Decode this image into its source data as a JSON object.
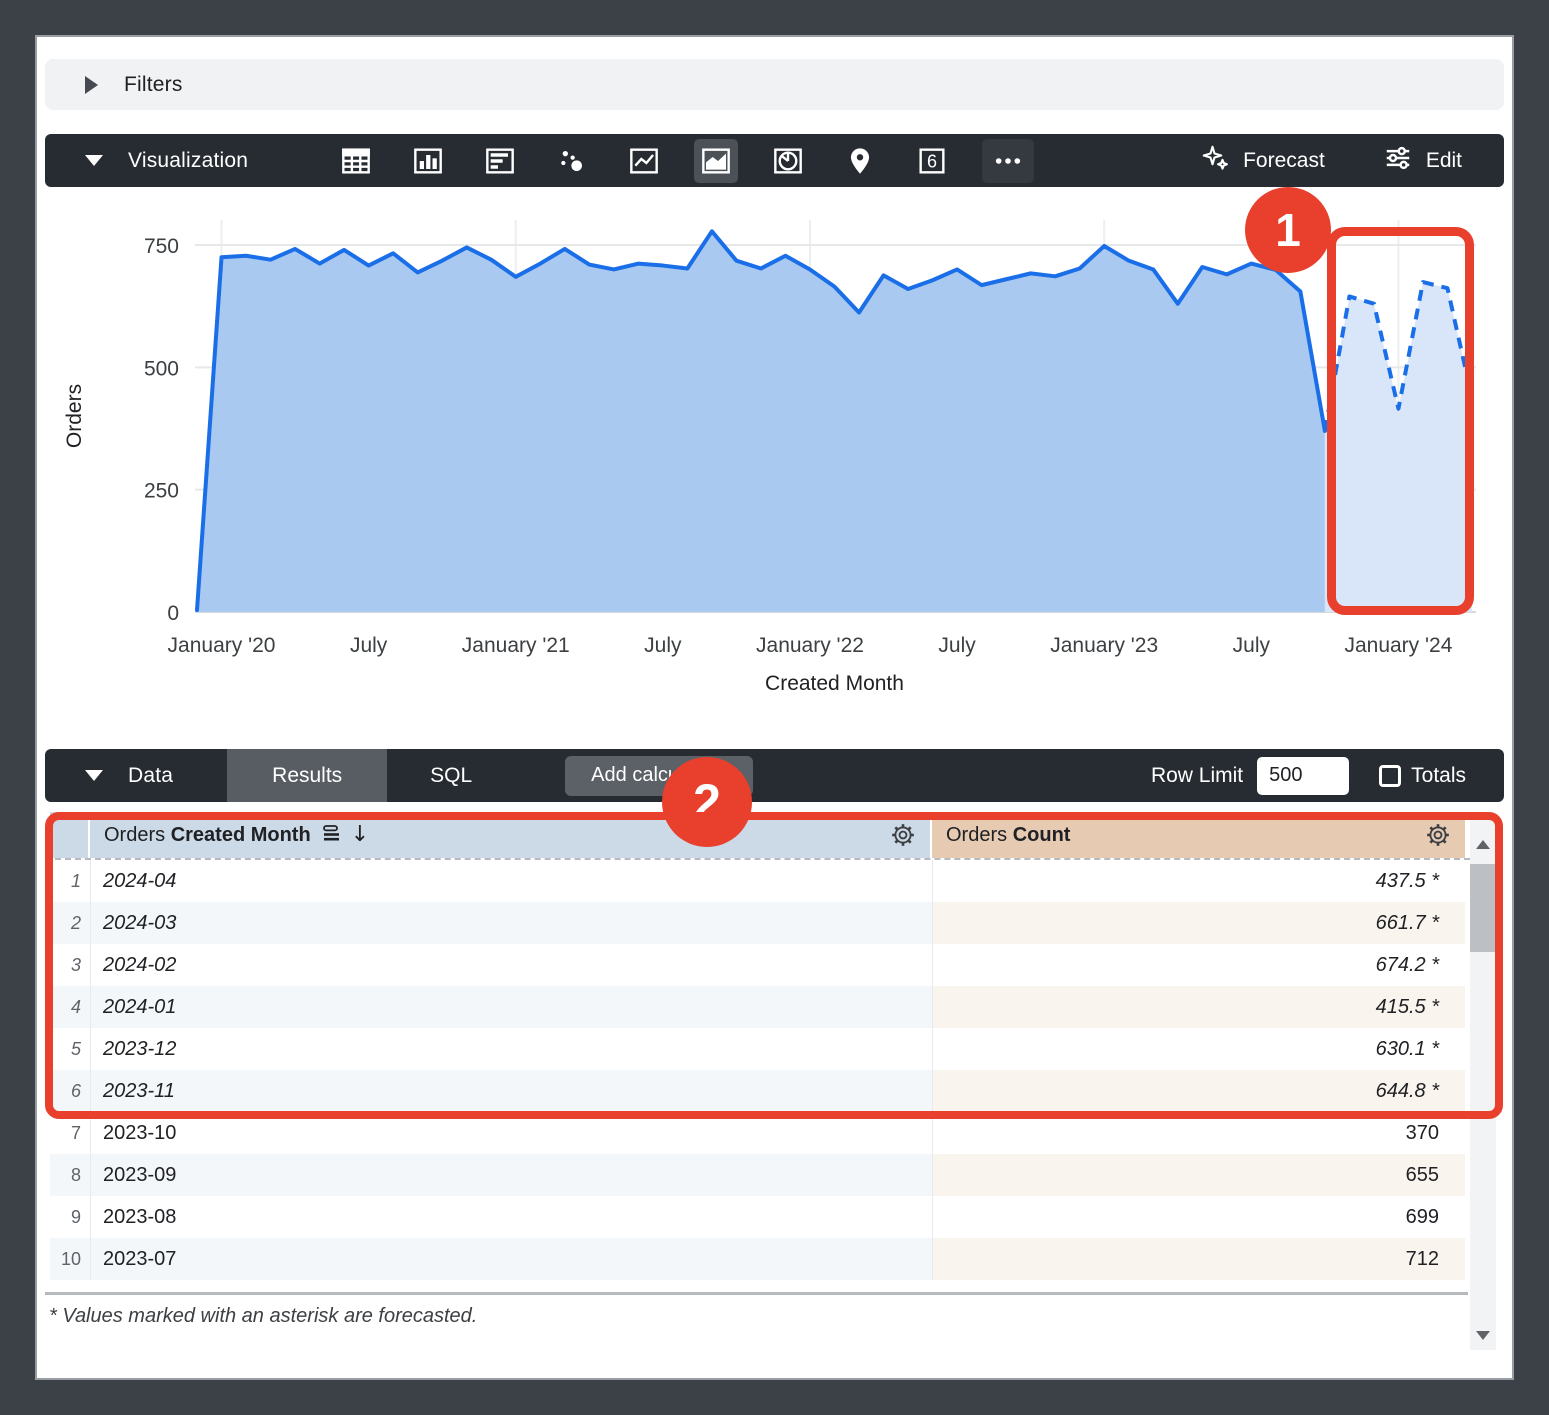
{
  "colors": {
    "accent_blue": "#1a6fe8",
    "history_fill": "#a9c9f1",
    "forecast_fill": "#d9e6fa",
    "highlight_red": "#e8402d",
    "dimension_header_bg": "#ccd9e7",
    "measure_header_bg": "#e7cab2"
  },
  "filters": {
    "label": "Filters"
  },
  "viz_bar": {
    "label": "Visualization",
    "chart_type_icons": [
      "table",
      "column",
      "bar",
      "scatter",
      "line",
      "area",
      "pie",
      "map",
      "single-value",
      "more"
    ],
    "selected_icon": "area",
    "single_value_icon_text": "6",
    "forecast_label": "Forecast",
    "edit_label": "Edit"
  },
  "annotations": {
    "badge_1": "1",
    "badge_2": "2"
  },
  "chart_data": {
    "type": "area",
    "title": "",
    "xlabel": "Created Month",
    "ylabel": "Orders",
    "ylim": [
      0,
      800
    ],
    "yticks": [
      0,
      250,
      500,
      750
    ],
    "grid": true,
    "legend": "none",
    "x": [
      "2019-12",
      "2020-01",
      "2020-02",
      "2020-03",
      "2020-04",
      "2020-05",
      "2020-06",
      "2020-07",
      "2020-08",
      "2020-09",
      "2020-10",
      "2020-11",
      "2020-12",
      "2021-01",
      "2021-02",
      "2021-03",
      "2021-04",
      "2021-05",
      "2021-06",
      "2021-07",
      "2021-08",
      "2021-09",
      "2021-10",
      "2021-11",
      "2021-12",
      "2022-01",
      "2022-02",
      "2022-03",
      "2022-04",
      "2022-05",
      "2022-06",
      "2022-07",
      "2022-08",
      "2022-09",
      "2022-10",
      "2022-11",
      "2022-12",
      "2023-01",
      "2023-02",
      "2023-03",
      "2023-04",
      "2023-05",
      "2023-06",
      "2023-07",
      "2023-08",
      "2023-09",
      "2023-10",
      "2023-11",
      "2023-12",
      "2024-01",
      "2024-02",
      "2024-03",
      "2024-04"
    ],
    "series": [
      {
        "name": "Orders Count",
        "values": [
          4,
          725,
          728,
          720,
          742,
          712,
          740,
          708,
          733,
          694,
          718,
          745,
          720,
          685,
          712,
          742,
          710,
          700,
          712,
          708,
          702,
          778,
          718,
          702,
          728,
          700,
          665,
          612,
          688,
          660,
          678,
          700,
          668,
          680,
          692,
          686,
          702,
          748,
          718,
          700,
          630,
          705,
          690,
          712,
          699,
          655,
          370,
          644.8,
          630.1,
          415.5,
          674.2,
          661.7,
          437.5
        ]
      }
    ],
    "forecast_start_index": 47,
    "forecast_style": "dashed line with lighter fill",
    "xtick_labels": [
      "January '20",
      "July",
      "January '21",
      "July",
      "January '22",
      "July",
      "January '23",
      "July",
      "January '24"
    ],
    "xtick_indices": [
      1,
      7,
      13,
      19,
      25,
      31,
      37,
      43,
      49
    ]
  },
  "data_bar": {
    "label": "Data",
    "tabs": [
      {
        "label": "Results",
        "selected": true
      },
      {
        "label": "SQL",
        "selected": false
      }
    ],
    "add_calculation_label": "Add calculation",
    "row_limit_label": "Row Limit",
    "row_limit_value": "500",
    "totals_label": "Totals",
    "totals_checked": false
  },
  "table": {
    "columns": [
      {
        "prefix": "Orders ",
        "field": "Created Month",
        "sort": "desc",
        "has_gear": true
      },
      {
        "prefix": "Orders ",
        "field": "Count",
        "has_gear": true
      }
    ],
    "rows": [
      {
        "index": 1,
        "month": "2024-04",
        "count": "437.5 *",
        "forecast": true
      },
      {
        "index": 2,
        "month": "2024-03",
        "count": "661.7 *",
        "forecast": true
      },
      {
        "index": 3,
        "month": "2024-02",
        "count": "674.2 *",
        "forecast": true
      },
      {
        "index": 4,
        "month": "2024-01",
        "count": "415.5 *",
        "forecast": true
      },
      {
        "index": 5,
        "month": "2023-12",
        "count": "630.1 *",
        "forecast": true
      },
      {
        "index": 6,
        "month": "2023-11",
        "count": "644.8 *",
        "forecast": true
      },
      {
        "index": 7,
        "month": "2023-10",
        "count": "370",
        "forecast": false
      },
      {
        "index": 8,
        "month": "2023-09",
        "count": "655",
        "forecast": false
      },
      {
        "index": 9,
        "month": "2023-08",
        "count": "699",
        "forecast": false
      },
      {
        "index": 10,
        "month": "2023-07",
        "count": "712",
        "forecast": false
      }
    ],
    "footnote": "* Values marked with an asterisk are forecasted."
  }
}
